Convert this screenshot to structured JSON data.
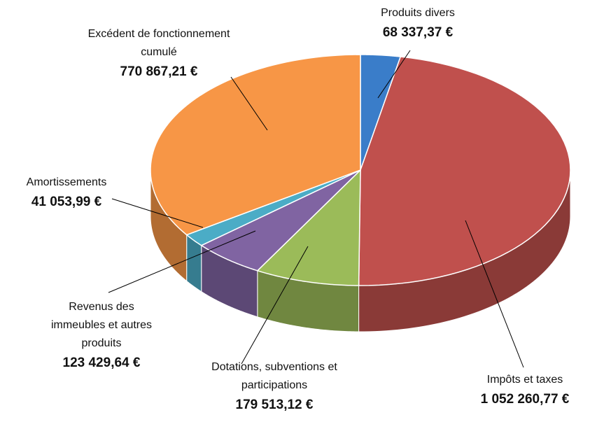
{
  "chart_data": {
    "type": "pie3d",
    "categories": [
      "Produits divers",
      "Impôts et taxes",
      "Dotations, subventions et participations",
      "Revenus des immeubles et autres produits",
      "Amortissements",
      "Excédent de fonctionnement cumulé"
    ],
    "values": [
      68337.37,
      1052260.77,
      179513.12,
      123429.64,
      41053.99,
      770867.21
    ],
    "value_labels": [
      "68 337,37 €",
      "1 052 260,77 €",
      "179 513,12 €",
      "123 429,64 €",
      "41 053,99 €",
      "770 867,21 €"
    ],
    "colors": [
      "#3a7dc9",
      "#c0504d",
      "#9bbb59",
      "#8064a2",
      "#4bacc6",
      "#f79646"
    ]
  }
}
